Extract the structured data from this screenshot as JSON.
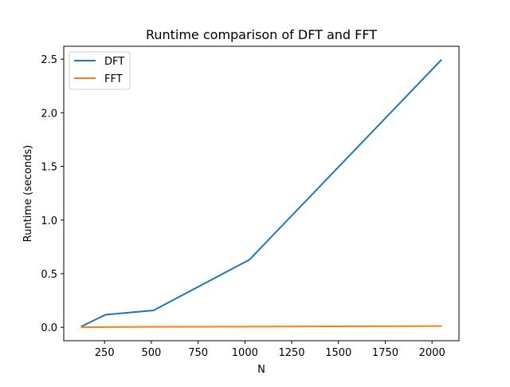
{
  "chart_data": {
    "type": "line",
    "title": "Runtime comparison of DFT and FFT",
    "xlabel": "N",
    "ylabel": "Runtime (seconds)",
    "xlim": [
      32,
      2144
    ],
    "ylim": [
      -0.125,
      2.62
    ],
    "xticks": [
      250,
      500,
      750,
      1000,
      1250,
      1500,
      1750,
      2000
    ],
    "yticks": [
      0.0,
      0.5,
      1.0,
      1.5,
      2.0,
      2.5
    ],
    "xtick_labels": [
      "250",
      "500",
      "750",
      "1000",
      "1250",
      "1500",
      "1750",
      "2000"
    ],
    "ytick_labels": [
      "0.0",
      "0.5",
      "1.0",
      "1.5",
      "2.0",
      "2.5"
    ],
    "grid": false,
    "legend_position": "top-left",
    "x": [
      128,
      256,
      512,
      1024,
      2048
    ],
    "series": [
      {
        "name": "DFT",
        "color": "#1f77b4",
        "values": [
          0.01,
          0.118,
          0.158,
          0.63,
          2.49
        ]
      },
      {
        "name": "FFT",
        "color": "#ff7f0e",
        "values": [
          0.001,
          0.002,
          0.004,
          0.006,
          0.012
        ]
      }
    ]
  }
}
